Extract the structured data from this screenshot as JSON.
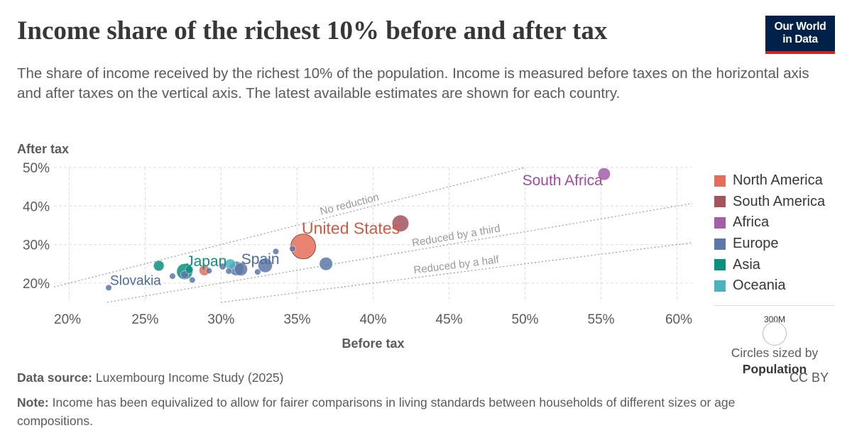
{
  "header": {
    "title": "Income share of the richest 10% before and after tax",
    "subtitle": "The share of income received by the richest 10% of the population. Income is measured before taxes on the horizontal axis and after taxes on the vertical axis. The latest available estimates are shown for each country.",
    "logo_line1": "Our World",
    "logo_line2": "in Data"
  },
  "footer": {
    "source_label": "Data source:",
    "source_text": "Luxembourg Income Study (2025)",
    "note_label": "Note:",
    "note_text": "Income has been equivalized to allow for fairer comparisons in living standards between households of different sizes or age compositions.",
    "license": "CC BY"
  },
  "size_legend": {
    "value_label": "300M",
    "caption_line1": "Circles sized by",
    "caption_line2": "Population"
  },
  "chart_data": {
    "type": "scatter",
    "xlabel": "Before tax",
    "ylabel": "After tax",
    "xlim": [
      19,
      61
    ],
    "ylim": [
      15,
      50
    ],
    "x_ticks": [
      20,
      25,
      30,
      35,
      40,
      45,
      50,
      55,
      60
    ],
    "x_tick_labels": [
      "20%",
      "25%",
      "30%",
      "35%",
      "40%",
      "45%",
      "50%",
      "55%",
      "60%"
    ],
    "y_ticks": [
      20,
      30,
      40,
      50
    ],
    "y_tick_labels": [
      "20%",
      "30%",
      "40%",
      "50%"
    ],
    "grid": true,
    "legend_position": "right",
    "colors": {
      "North America": "#e56e5a",
      "South America": "#a2545f",
      "Africa": "#a65ea8",
      "Europe": "#5d78a8",
      "Asia": "#0b8f7f",
      "Oceania": "#4ab3c0"
    },
    "label_colors": {
      "North America": "#d15a45",
      "South America": "#9a4b55",
      "Africa": "#a24aa2",
      "Europe": "#4c6a9c",
      "Asia": "#0b8f7f",
      "Oceania": "#3aa4b0"
    },
    "series": [
      {
        "name": "North America",
        "points": [
          {
            "x": 35.4,
            "y": 29.5,
            "size": 1.0,
            "label": "United States"
          },
          {
            "x": 28.9,
            "y": 23.3,
            "size": 0.18
          }
        ]
      },
      {
        "name": "South America",
        "points": [
          {
            "x": 41.8,
            "y": 35.5,
            "size": 0.45
          }
        ]
      },
      {
        "name": "Africa",
        "points": [
          {
            "x": 55.2,
            "y": 48.3,
            "size": 0.25,
            "label": "South Africa"
          }
        ]
      },
      {
        "name": "Europe",
        "points": [
          {
            "x": 22.6,
            "y": 18.8,
            "size": 0.06,
            "label": "Slovakia"
          },
          {
            "x": 26.8,
            "y": 21.8,
            "size": 0.06
          },
          {
            "x": 27.6,
            "y": 22.2,
            "size": 0.1
          },
          {
            "x": 28.1,
            "y": 20.8,
            "size": 0.06
          },
          {
            "x": 29.2,
            "y": 23.2,
            "size": 0.06
          },
          {
            "x": 30.1,
            "y": 24.3,
            "size": 0.07
          },
          {
            "x": 30.5,
            "y": 23.1,
            "size": 0.06
          },
          {
            "x": 31.0,
            "y": 23.8,
            "size": 0.33
          },
          {
            "x": 31.3,
            "y": 23.6,
            "size": 0.28
          },
          {
            "x": 32.4,
            "y": 22.9,
            "size": 0.06
          },
          {
            "x": 32.9,
            "y": 24.6,
            "size": 0.33,
            "label": "Spain"
          },
          {
            "x": 33.6,
            "y": 28.2,
            "size": 0.06
          },
          {
            "x": 34.7,
            "y": 28.9,
            "size": 0.06
          },
          {
            "x": 36.9,
            "y": 25.0,
            "size": 0.28
          }
        ]
      },
      {
        "name": "Asia",
        "points": [
          {
            "x": 25.9,
            "y": 24.5,
            "size": 0.18
          },
          {
            "x": 27.6,
            "y": 23.0,
            "size": 0.41
          },
          {
            "x": 27.9,
            "y": 23.5,
            "size": 0.1,
            "label": "Japan"
          }
        ]
      },
      {
        "name": "Oceania",
        "points": [
          {
            "x": 30.6,
            "y": 24.9,
            "size": 0.18
          }
        ]
      }
    ],
    "annotations": [
      {
        "text": "No reduction",
        "slope": 1.0
      },
      {
        "text": "Reduced by a third",
        "slope": 0.6667
      },
      {
        "text": "Reduced by a half",
        "slope": 0.5
      }
    ]
  }
}
